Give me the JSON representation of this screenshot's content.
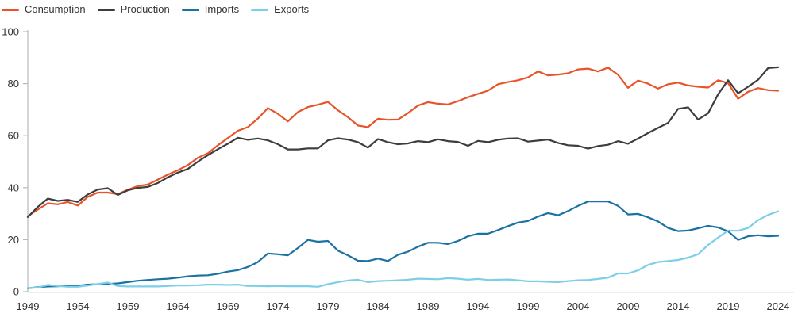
{
  "page": {
    "background": "#ffffff"
  },
  "chart_data": {
    "type": "line",
    "title": "",
    "xlabel": "",
    "ylabel": "",
    "x_start": 1949,
    "x_step": 1,
    "x_end": 2024,
    "xticks": [
      1949,
      1954,
      1959,
      1964,
      1969,
      1974,
      1979,
      1984,
      1989,
      1994,
      1999,
      2004,
      2009,
      2014,
      2019,
      2024
    ],
    "ylim": [
      0,
      100
    ],
    "yticks": [
      0,
      20,
      40,
      60,
      80,
      100
    ],
    "grid": false,
    "legend_position": "top-left",
    "axis_color": "#b9b9b9",
    "tick_label_color": "#333333",
    "line_width": 2.2,
    "series": [
      {
        "name": "Consumption",
        "color": "#e8532a",
        "values": [
          29.0,
          31.6,
          34.0,
          33.6,
          34.5,
          33.1,
          36.5,
          38.1,
          38.1,
          37.5,
          39.2,
          40.6,
          41.2,
          43.1,
          45.0,
          46.7,
          48.7,
          51.5,
          53.2,
          56.3,
          59.1,
          61.9,
          63.3,
          66.6,
          70.6,
          68.4,
          65.5,
          69.1,
          71.0,
          71.9,
          73.0,
          69.8,
          67.1,
          63.9,
          63.3,
          66.5,
          66.1,
          66.2,
          68.7,
          71.6,
          72.9,
          72.3,
          72.0,
          73.3,
          74.8,
          76.1,
          77.3,
          79.8,
          80.6,
          81.3,
          82.4,
          84.7,
          83.2,
          83.5,
          84.0,
          85.5,
          85.8,
          84.7,
          86.2,
          83.4,
          78.4,
          81.2,
          80.0,
          78.1,
          79.8,
          80.4,
          79.3,
          78.8,
          78.5,
          81.3,
          80.2,
          74.2,
          76.9,
          78.3,
          77.5,
          77.3
        ]
      },
      {
        "name": "Production",
        "color": "#3d3d3d",
        "values": [
          28.7,
          32.6,
          35.8,
          34.9,
          35.3,
          34.5,
          37.4,
          39.3,
          39.8,
          37.2,
          39.0,
          39.9,
          40.3,
          41.8,
          44.0,
          45.8,
          47.2,
          50.0,
          52.5,
          54.8,
          56.9,
          59.2,
          58.4,
          58.9,
          58.2,
          56.7,
          54.7,
          54.7,
          55.1,
          55.1,
          58.2,
          59.0,
          58.5,
          57.5,
          55.4,
          58.7,
          57.5,
          56.7,
          57.0,
          57.9,
          57.5,
          58.6,
          57.9,
          57.6,
          56.1,
          58.0,
          57.5,
          58.4,
          58.9,
          59.0,
          57.7,
          58.1,
          58.5,
          57.2,
          56.3,
          56.1,
          55.0,
          56.0,
          56.5,
          57.9,
          56.9,
          58.9,
          61.0,
          63.0,
          64.9,
          70.3,
          70.9,
          66.2,
          68.6,
          75.9,
          81.3,
          76.3,
          78.8,
          81.5,
          86.0,
          86.3
        ]
      },
      {
        "name": "Imports",
        "color": "#1a72a2",
        "values": [
          1.3,
          1.7,
          2.0,
          2.1,
          2.3,
          2.3,
          2.7,
          2.9,
          3.0,
          3.2,
          3.7,
          4.2,
          4.5,
          4.8,
          5.0,
          5.4,
          5.9,
          6.2,
          6.3,
          6.9,
          7.7,
          8.3,
          9.5,
          11.4,
          14.7,
          14.4,
          14.0,
          16.8,
          19.9,
          19.2,
          19.5,
          15.8,
          14.0,
          11.9,
          11.8,
          12.7,
          11.8,
          14.2,
          15.4,
          17.3,
          18.8,
          18.8,
          18.3,
          19.5,
          21.3,
          22.3,
          22.3,
          23.7,
          25.2,
          26.6,
          27.2,
          28.9,
          30.2,
          29.4,
          31.0,
          33.0,
          34.7,
          34.7,
          34.7,
          33.0,
          29.7,
          29.9,
          28.6,
          27.0,
          24.5,
          23.3,
          23.5,
          24.4,
          25.3,
          24.7,
          23.2,
          19.9,
          21.3,
          21.7,
          21.3,
          21.5
        ]
      },
      {
        "name": "Exports",
        "color": "#7dcfe9",
        "values": [
          1.4,
          1.6,
          2.6,
          2.2,
          1.9,
          1.9,
          2.4,
          3.0,
          3.5,
          2.2,
          2.0,
          2.0,
          2.0,
          2.0,
          2.2,
          2.4,
          2.4,
          2.5,
          2.7,
          2.7,
          2.6,
          2.7,
          2.2,
          2.2,
          2.1,
          2.2,
          2.1,
          2.1,
          2.1,
          1.9,
          2.9,
          3.7,
          4.3,
          4.6,
          3.7,
          4.1,
          4.2,
          4.4,
          4.6,
          5.0,
          4.9,
          4.8,
          5.2,
          5.0,
          4.6,
          4.9,
          4.5,
          4.6,
          4.7,
          4.4,
          4.0,
          4.0,
          3.8,
          3.7,
          4.1,
          4.4,
          4.5,
          4.9,
          5.4,
          7.0,
          7.0,
          8.2,
          10.3,
          11.4,
          11.8,
          12.2,
          13.1,
          14.4,
          18.0,
          20.8,
          23.5,
          23.4,
          24.5,
          27.5,
          29.5,
          30.9
        ]
      }
    ]
  }
}
